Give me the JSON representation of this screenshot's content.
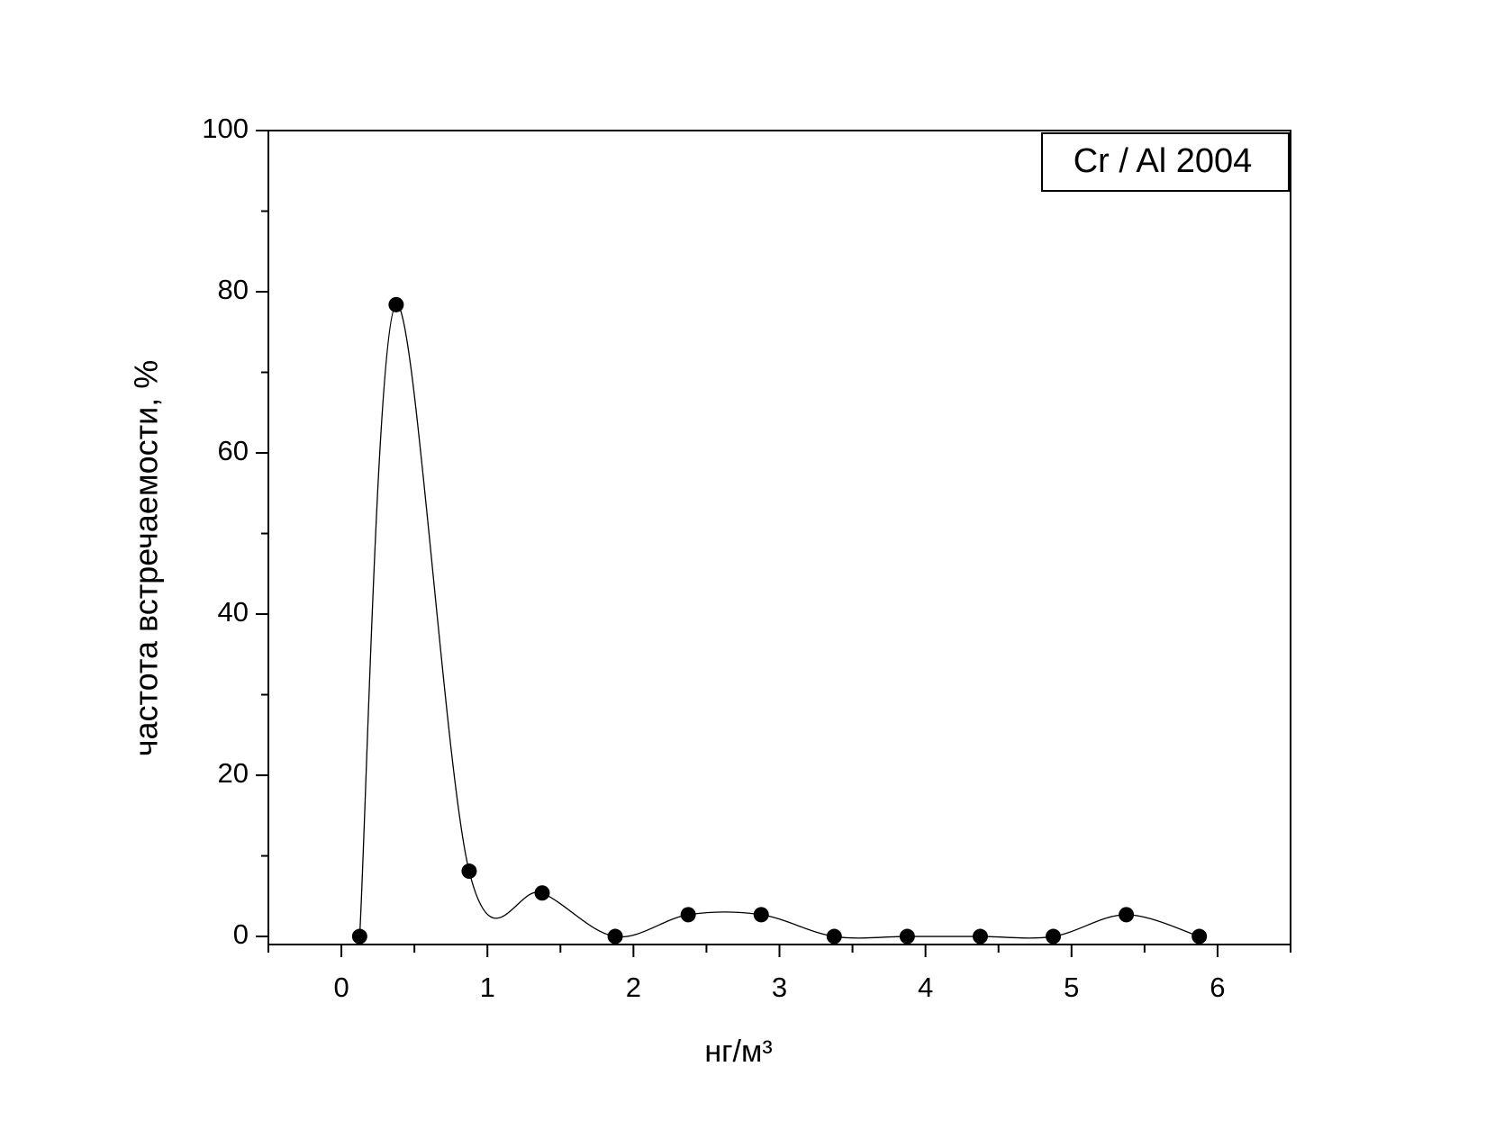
{
  "chart_data": {
    "type": "scatter",
    "annotation": "Cr / Al 2004",
    "xlabel": "нг/м³",
    "ylabel": "частота встречаемости, %",
    "xlim": [
      -0.5,
      6.5
    ],
    "xticks": [
      0,
      1,
      2,
      3,
      4,
      5,
      6
    ],
    "ylim": [
      -1,
      100
    ],
    "yticks": [
      0,
      20,
      40,
      60,
      80,
      100
    ],
    "smooth_line": true,
    "series": [
      {
        "name": "Cr / Al 2004",
        "color": "#000000",
        "x": [
          0.125,
          0.375,
          0.875,
          1.375,
          1.875,
          2.375,
          2.875,
          3.375,
          3.875,
          4.375,
          4.875,
          5.375,
          5.875
        ],
        "values": [
          0,
          78.4,
          8.1,
          5.4,
          0,
          2.7,
          2.7,
          0,
          0,
          0,
          0,
          2.7,
          0
        ]
      }
    ]
  }
}
